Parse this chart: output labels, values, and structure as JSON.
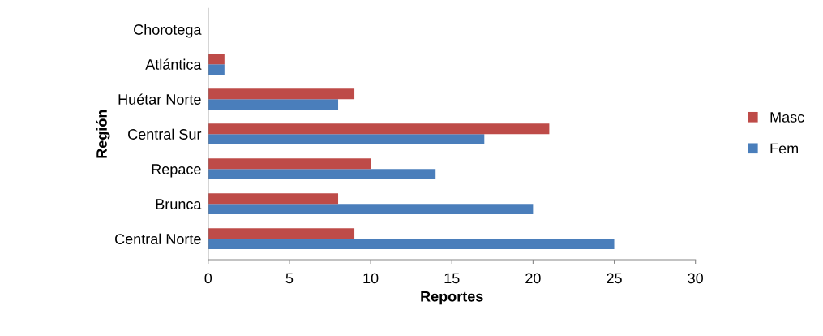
{
  "chart_data": {
    "type": "bar",
    "orientation": "horizontal",
    "xlabel": "Reportes",
    "ylabel": "Región",
    "categories": [
      "Chorotega",
      "Atlántica",
      "Huétar Norte",
      "Central Sur",
      "Repace",
      "Brunca",
      "Central Norte"
    ],
    "series": [
      {
        "name": "Fem",
        "color": "#4a7ebb",
        "values": [
          0,
          1,
          8,
          17,
          14,
          20,
          25
        ]
      },
      {
        "name": "Masc",
        "color": "#be4b48",
        "values": [
          0,
          1,
          9,
          21,
          10,
          8,
          9
        ]
      }
    ],
    "xlim": [
      0,
      30
    ],
    "xticks": [
      0,
      5,
      10,
      15,
      20,
      25,
      30
    ],
    "grid": false,
    "legend": "right"
  }
}
